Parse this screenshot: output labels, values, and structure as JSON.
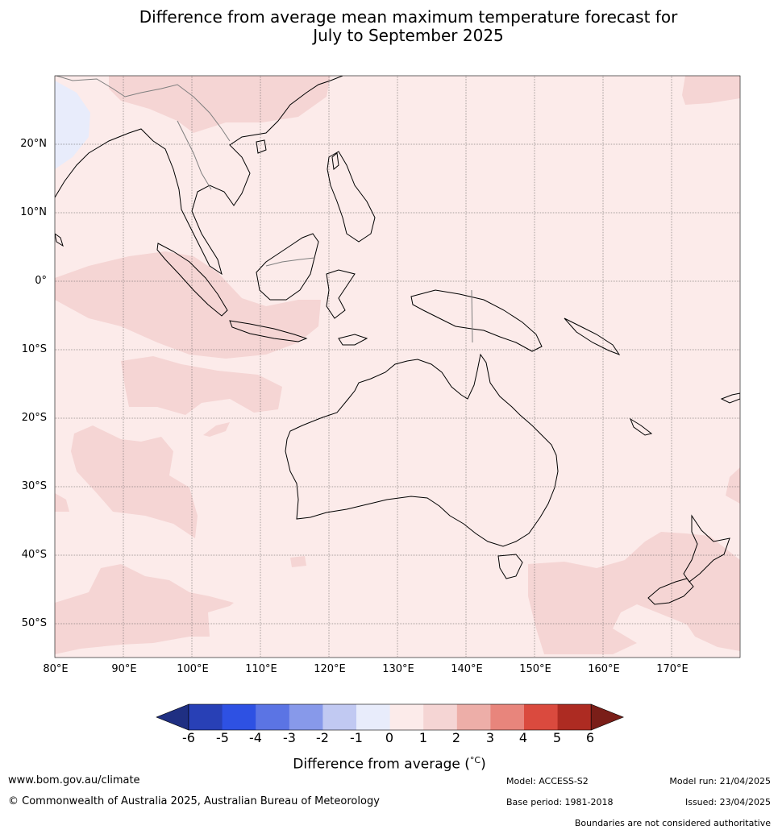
{
  "title_line1": "Difference from average mean maximum temperature forecast for",
  "title_line2": "July to September 2025",
  "map": {
    "lon_range": [
      80,
      180
    ],
    "lat_range": [
      -55,
      30
    ],
    "lat_labels": [
      "20°N",
      "10°N",
      "0°",
      "10°S",
      "20°S",
      "30°S",
      "40°S",
      "50°S"
    ],
    "lon_labels": [
      "80°E",
      "90°E",
      "100°E",
      "110°E",
      "120°E",
      "130°E",
      "140°E",
      "150°E",
      "160°E",
      "170°E"
    ],
    "background_category": "0 to 1",
    "colors": {
      "ocean_default": "#fcebea",
      "warm_1_2": "#f5d5d4",
      "cool_m1_0": "#e8ecfb",
      "coast": "#000000",
      "border": "#7f7f7f",
      "grid": "#666666"
    }
  },
  "colorbar": {
    "ticks": [
      "-6",
      "-5",
      "-4",
      "-3",
      "-2",
      "-1",
      "0",
      "1",
      "2",
      "3",
      "4",
      "5",
      "6"
    ],
    "colors": [
      "#1f2f82",
      "#2840b6",
      "#2e51e3",
      "#5b74e4",
      "#8799ea",
      "#c1c9f2",
      "#e8ecfb",
      "#fcebea",
      "#f5d5d4",
      "#edaea8",
      "#e8857c",
      "#da4a3e",
      "#ad2b22",
      "#7a1e18"
    ],
    "label": "Difference from average (°C)",
    "label_main": "Difference from average (",
    "label_unit": "°C",
    "label_end": ")"
  },
  "footer": {
    "website": "www.bom.gov.au/climate",
    "copyright": "© Commonwealth of Australia 2025, Australian Bureau of Meteorology",
    "model": "Model: ACCESS-S2",
    "model_run": "Model run: 21/04/2025",
    "base_period": "Base period: 1981-2018",
    "issued": "Issued: 23/04/2025",
    "disclaimer": "Boundaries are not considered authoritative"
  }
}
